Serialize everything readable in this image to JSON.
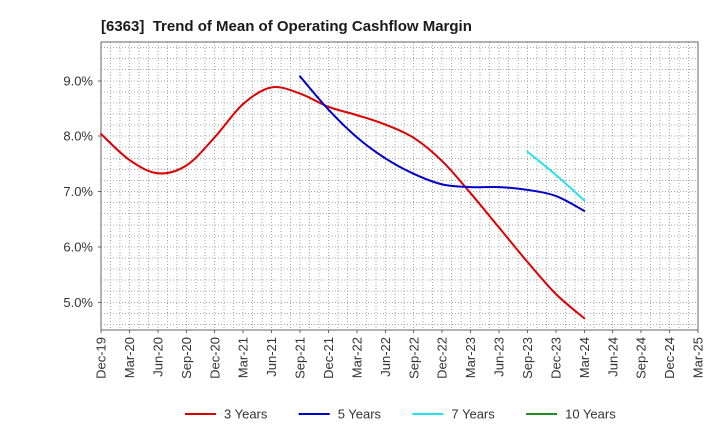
{
  "chart_data": {
    "type": "line",
    "title": "[6363]  Trend of Mean of Operating Cashflow Margin",
    "xlabel": "",
    "ylabel": "",
    "categories": [
      "Dec-19",
      "Mar-20",
      "Jun-20",
      "Sep-20",
      "Dec-20",
      "Mar-21",
      "Jun-21",
      "Sep-21",
      "Dec-21",
      "Mar-22",
      "Jun-22",
      "Sep-22",
      "Dec-22",
      "Mar-23",
      "Jun-23",
      "Sep-23",
      "Dec-23",
      "Mar-24",
      "Jun-24",
      "Sep-24",
      "Dec-24",
      "Mar-25"
    ],
    "ylim": [
      4.5,
      9.7
    ],
    "yticks": [
      5,
      6,
      7,
      8,
      9
    ],
    "ytick_labels": [
      "5.0%",
      "6.0%",
      "7.0%",
      "8.0%",
      "9.0%"
    ],
    "grid": true,
    "legend": "bottom",
    "series": [
      {
        "name": "3 Years",
        "color": "#dd0000",
        "values": [
          8.04,
          7.57,
          7.33,
          7.47,
          7.98,
          8.58,
          8.88,
          8.77,
          8.53,
          8.38,
          8.21,
          7.97,
          7.55,
          6.97,
          6.35,
          5.73,
          5.15,
          4.71,
          null,
          null,
          null,
          null
        ]
      },
      {
        "name": "5 Years",
        "color": "#0000cc",
        "values": [
          null,
          null,
          null,
          null,
          null,
          null,
          null,
          9.08,
          8.48,
          7.98,
          7.6,
          7.32,
          7.13,
          7.08,
          7.08,
          7.03,
          6.92,
          6.65,
          null,
          null,
          null,
          null
        ]
      },
      {
        "name": "7 Years",
        "color": "#27e0ec",
        "values": [
          null,
          null,
          null,
          null,
          null,
          null,
          null,
          null,
          null,
          null,
          null,
          null,
          null,
          null,
          null,
          7.72,
          7.3,
          6.84,
          null,
          null,
          null,
          null
        ]
      },
      {
        "name": "10 Years",
        "color": "#228b22",
        "values": [
          null,
          null,
          null,
          null,
          null,
          null,
          null,
          null,
          null,
          null,
          null,
          null,
          null,
          null,
          null,
          null,
          null,
          null,
          null,
          null,
          null,
          null
        ]
      }
    ]
  }
}
